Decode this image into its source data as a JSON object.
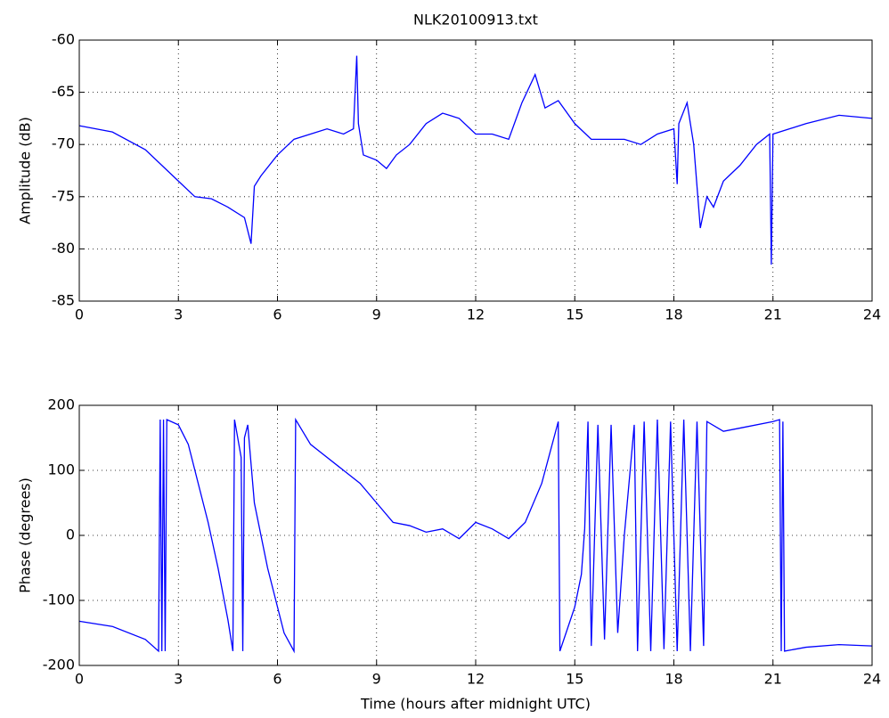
{
  "chart_data": [
    {
      "type": "line",
      "title": "NLK20100913.txt",
      "ylabel": "Amplitude (dB)",
      "xlim": [
        0,
        24
      ],
      "ylim": [
        -85,
        -60
      ],
      "xticks": [
        0,
        3,
        6,
        9,
        12,
        15,
        18,
        21,
        24
      ],
      "yticks": [
        -85,
        -80,
        -75,
        -70,
        -65,
        -60
      ],
      "grid": true,
      "series": [
        {
          "name": "Amplitude",
          "color": "#0000ff",
          "x": [
            0,
            1,
            2,
            3,
            3.5,
            4,
            4.5,
            5,
            5.2,
            5.3,
            5.5,
            6,
            6.5,
            7,
            7.5,
            8,
            8.3,
            8.4,
            8.45,
            8.6,
            9,
            9.3,
            9.6,
            10,
            10.5,
            11,
            11.5,
            12,
            12.5,
            13,
            13.4,
            13.8,
            14.1,
            14.5,
            15,
            15.5,
            16,
            16.5,
            17,
            17.5,
            18,
            18.1,
            18.15,
            18.4,
            18.6,
            18.8,
            19,
            19.2,
            19.5,
            20,
            20.5,
            20.9,
            20.95,
            21,
            22,
            23,
            24
          ],
          "values": [
            -68.2,
            -68.8,
            -70.5,
            -73.5,
            -75,
            -75.2,
            -76,
            -77,
            -79.5,
            -74,
            -73,
            -71,
            -69.5,
            -69,
            -68.5,
            -69,
            -68.5,
            -61.5,
            -68,
            -71,
            -71.5,
            -72.3,
            -71,
            -70,
            -68,
            -67,
            -67.5,
            -69,
            -69,
            -69.5,
            -66,
            -63.3,
            -66.5,
            -65.8,
            -68,
            -69.5,
            -69.5,
            -69.5,
            -70,
            -69,
            -68.5,
            -73.8,
            -68,
            -66,
            -70,
            -78,
            -75,
            -76,
            -73.5,
            -72,
            -70,
            -69,
            -81.5,
            -69,
            -68,
            -67.2,
            -67.5
          ]
        }
      ]
    },
    {
      "type": "line",
      "xlabel": "Time (hours after midnight UTC)",
      "ylabel": "Phase (degrees)",
      "xlim": [
        0,
        24
      ],
      "ylim": [
        -200,
        200
      ],
      "xticks": [
        0,
        3,
        6,
        9,
        12,
        15,
        18,
        21,
        24
      ],
      "yticks": [
        -200,
        -100,
        0,
        100,
        200
      ],
      "grid": true,
      "series": [
        {
          "name": "Phase",
          "color": "#0000ff",
          "x": [
            0,
            1,
            2,
            2.4,
            2.45,
            2.5,
            2.55,
            2.6,
            2.65,
            3,
            3.3,
            3.6,
            3.9,
            4.2,
            4.5,
            4.65,
            4.7,
            4.9,
            4.95,
            5.0,
            5.1,
            5.3,
            5.7,
            6.2,
            6.5,
            6.55,
            7,
            8,
            8.5,
            9,
            9.5,
            10,
            10.5,
            11,
            11.5,
            12,
            12.5,
            13,
            13.5,
            14,
            14.5,
            14.55,
            15,
            15.2,
            15.3,
            15.4,
            15.5,
            15.7,
            15.9,
            16.1,
            16.3,
            16.5,
            16.8,
            16.9,
            17.1,
            17.3,
            17.5,
            17.7,
            17.9,
            18.1,
            18.3,
            18.5,
            18.7,
            18.9,
            19,
            19.5,
            20,
            21,
            21.2,
            21.25,
            21.3,
            21.35,
            22,
            23,
            24
          ],
          "values": [
            -132,
            -140,
            -160,
            -178,
            178,
            -178,
            178,
            -178,
            178,
            170,
            140,
            80,
            20,
            -50,
            -130,
            -178,
            178,
            120,
            -178,
            150,
            170,
            50,
            -50,
            -150,
            -178,
            178,
            140,
            100,
            80,
            50,
            20,
            15,
            5,
            10,
            -5,
            20,
            10,
            -5,
            20,
            80,
            175,
            -178,
            -110,
            -60,
            10,
            175,
            -170,
            170,
            -160,
            170,
            -150,
            0,
            170,
            -178,
            175,
            -178,
            178,
            -175,
            175,
            -178,
            178,
            -178,
            175,
            -170,
            175,
            160,
            165,
            175,
            178,
            -178,
            175,
            -178,
            -172,
            -168,
            -170
          ]
        }
      ]
    }
  ]
}
